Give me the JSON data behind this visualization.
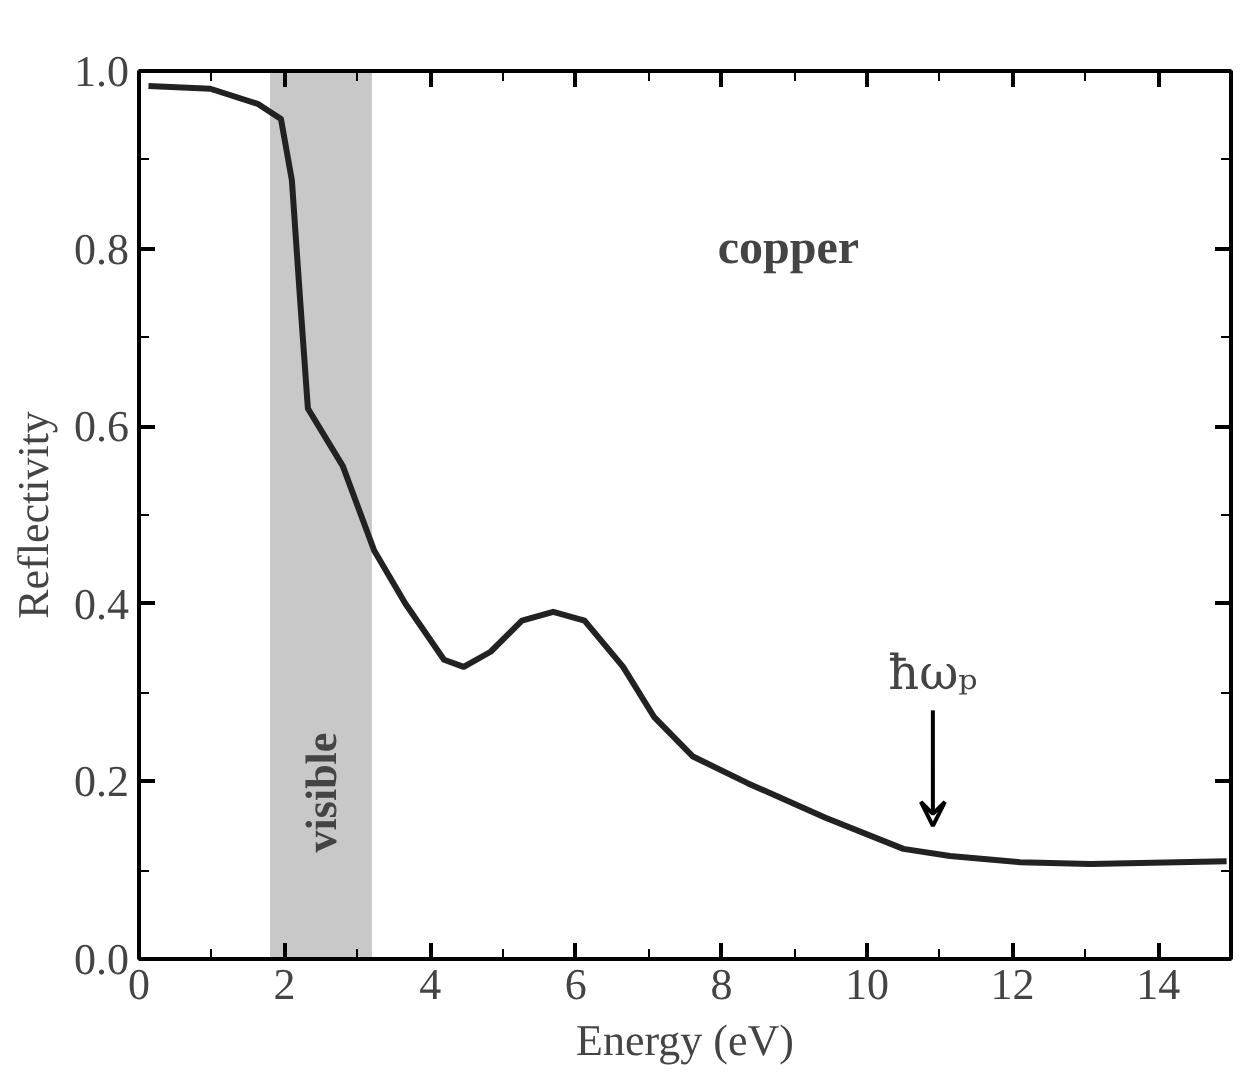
{
  "chart_data": {
    "type": "line",
    "xlabel": "Energy (eV)",
    "ylabel": "Reflectivity",
    "x": [
      0.13,
      0.98,
      1.63,
      1.95,
      2.1,
      2.21,
      2.32,
      2.8,
      3.23,
      3.66,
      4.19,
      4.46,
      4.83,
      5.26,
      5.69,
      6.12,
      6.65,
      7.08,
      7.61,
      8.36,
      9.43,
      10.5,
      11.14,
      12.1,
      13.07,
      14.94
    ],
    "series": [
      {
        "color": "#222222",
        "values": [
          0.983,
          0.98,
          0.963,
          0.946,
          0.877,
          0.746,
          0.62,
          0.555,
          0.46,
          0.4,
          0.337,
          0.329,
          0.346,
          0.381,
          0.391,
          0.381,
          0.329,
          0.272,
          0.228,
          0.198,
          0.159,
          0.124,
          0.116,
          0.109,
          0.107,
          0.11
        ]
      }
    ],
    "xlim": [
      0,
      15
    ],
    "ylim": [
      0,
      1.0
    ],
    "xticks": [
      0,
      {
        "value": 1,
        "label": null
      },
      2,
      {
        "value": 3,
        "label": null
      },
      4,
      {
        "value": 5,
        "label": null
      },
      6,
      {
        "value": 7,
        "label": null
      },
      8,
      {
        "value": 9,
        "label": null
      },
      10,
      {
        "value": 11,
        "label": null
      },
      12,
      {
        "value": 13,
        "label": null
      },
      14
    ],
    "yticks": [
      {
        "value": 0,
        "label": "0.0"
      },
      {
        "value": 0.1,
        "label": null
      },
      0.2,
      {
        "value": 0.3,
        "label": null
      },
      0.4,
      {
        "value": 0.5,
        "label": null
      },
      0.6,
      {
        "value": 0.7,
        "label": null
      },
      0.8,
      {
        "value": 0.9,
        "label": null
      },
      {
        "value": 1.0,
        "label": "1.0"
      }
    ],
    "bands": [
      {
        "axis": "x",
        "from": 1.8,
        "to": 3.2,
        "label": "visible",
        "color": "#c8c8c8"
      }
    ],
    "annotations": [
      "copper",
      "ħωₚ"
    ],
    "grid": false,
    "marker": "none",
    "line_style": "solid"
  }
}
